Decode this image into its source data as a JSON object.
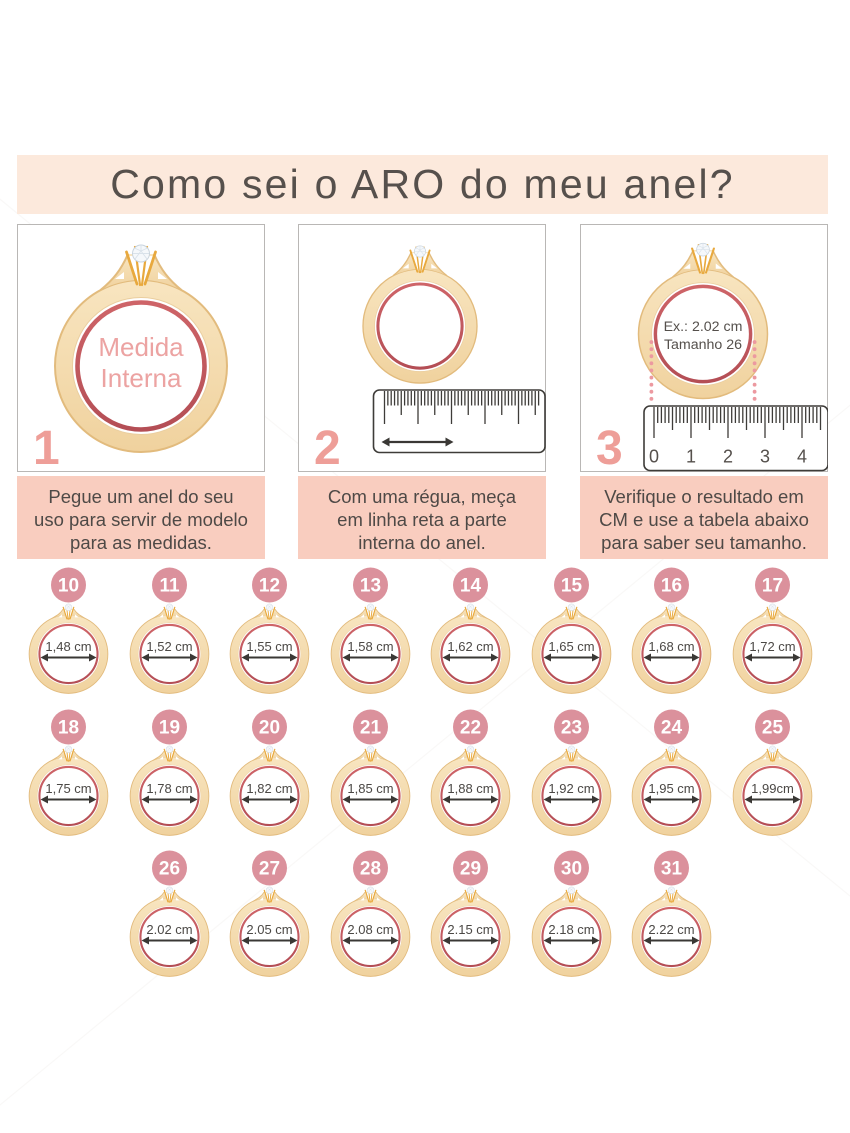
{
  "title": {
    "text": "Como sei o ARO do meu anel?"
  },
  "steps": [
    {
      "number": "1",
      "ring_label": [
        "Medida",
        "Interna"
      ],
      "caption": "Pegue um anel do seu\nuso para servir de modelo\npara as medidas."
    },
    {
      "number": "2",
      "caption": "Com uma régua, meça\nem linha reta a parte\ninterna do anel."
    },
    {
      "number": "3",
      "ring_label": [
        "Ex.: 2.02 cm",
        "Tamanho 26"
      ],
      "ruler_numbers": [
        "0",
        "1",
        "2",
        "3",
        "4"
      ],
      "caption": "Verifique o resultado em\nCM e use a tabela abaixo\npara saber seu tamanho."
    }
  ],
  "sizes": [
    {
      "size": "10",
      "label": "1,48 cm"
    },
    {
      "size": "11",
      "label": "1,52 cm"
    },
    {
      "size": "12",
      "label": "1,55 cm"
    },
    {
      "size": "13",
      "label": "1,58 cm"
    },
    {
      "size": "14",
      "label": "1,62 cm"
    },
    {
      "size": "15",
      "label": "1,65 cm"
    },
    {
      "size": "16",
      "label": "1,68 cm"
    },
    {
      "size": "17",
      "label": "1,72 cm"
    },
    {
      "size": "18",
      "label": "1,75 cm"
    },
    {
      "size": "19",
      "label": "1,78 cm"
    },
    {
      "size": "20",
      "label": "1,82 cm"
    },
    {
      "size": "21",
      "label": "1,85 cm"
    },
    {
      "size": "22",
      "label": "1,88 cm"
    },
    {
      "size": "23",
      "label": "1,92 cm"
    },
    {
      "size": "24",
      "label": "1,95 cm"
    },
    {
      "size": "25",
      "label": "1,99cm"
    },
    {
      "size": "26",
      "label": "2.02 cm"
    },
    {
      "size": "27",
      "label": "2.05 cm"
    },
    {
      "size": "28",
      "label": "2.08 cm"
    },
    {
      "size": "29",
      "label": "2.15 cm"
    },
    {
      "size": "30",
      "label": "2.18 cm"
    },
    {
      "size": "31",
      "label": "2.22 cm"
    }
  ],
  "grid": {
    "per_row": [
      8,
      8,
      6
    ]
  },
  "colors": {
    "banner_bg": "#FCE9DC",
    "title_color": "#56504C",
    "box_border": "#B9B7B5",
    "step_number": "#EE9E98",
    "caption_bg": "#F9CDBF",
    "caption_text": "#4E4946",
    "badge_bg": "#DB919C",
    "badge_text": "#FFFFFF",
    "gold": "#F3D9AC",
    "gold_edge": "#E2BB7D",
    "gold_inner_edge": "#EACE9F",
    "red": "#C5585C",
    "red_dark": "#B04A50",
    "red_light": "#D2686C",
    "prong": "#E8A93E",
    "diamond_fill": "#F4F7FA",
    "diamond_edge": "#C6D2DC",
    "ring_label_pink": "#ECA3A2",
    "dark_text": "#55504C",
    "tick": "#3E3C39",
    "arrow": "#3A3835",
    "dotted": "#EC99A0",
    "size_text": "#4B4845"
  }
}
